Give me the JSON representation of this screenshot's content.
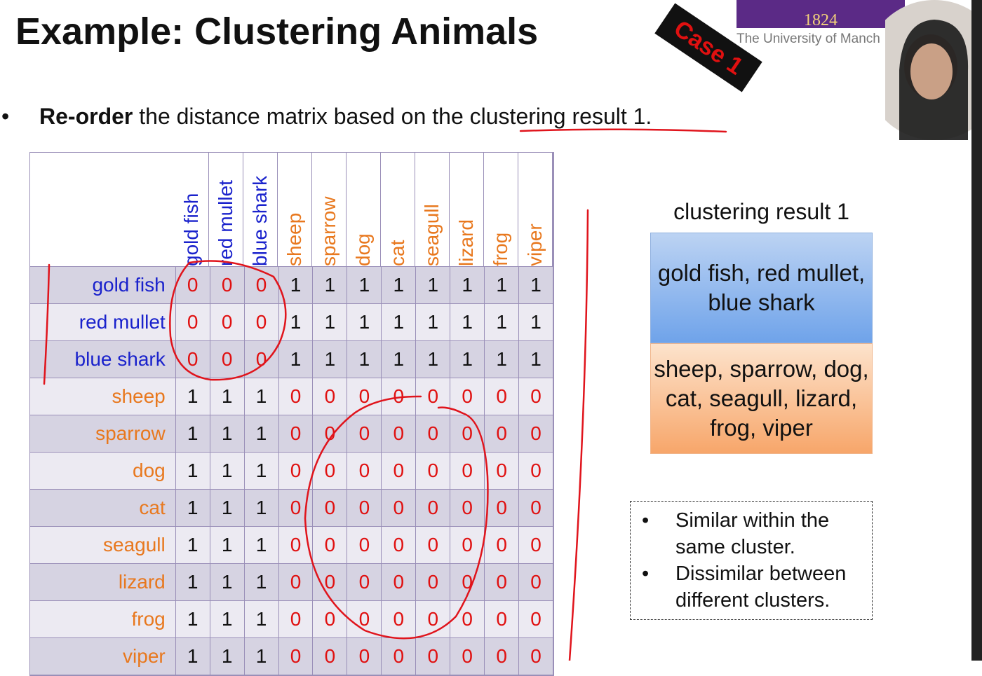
{
  "title": "Example: Clustering Animals",
  "badge": "Case 1",
  "logo": {
    "year": "1824",
    "university": "The University of Manch"
  },
  "bullet": {
    "bold": "Re-order",
    "text": " the distance matrix based on the ",
    "underlined": "clustering result 1."
  },
  "table": {
    "columns": [
      "gold fish",
      "red mullet",
      "blue shark",
      "sheep",
      "sparrow",
      "dog",
      "cat",
      "seagull",
      "lizard",
      "frog",
      "viper"
    ],
    "rows": [
      {
        "label": "gold fish",
        "cells": [
          0,
          0,
          0,
          1,
          1,
          1,
          1,
          1,
          1,
          1,
          1
        ]
      },
      {
        "label": "red mullet",
        "cells": [
          0,
          0,
          0,
          1,
          1,
          1,
          1,
          1,
          1,
          1,
          1
        ]
      },
      {
        "label": "blue shark",
        "cells": [
          0,
          0,
          0,
          1,
          1,
          1,
          1,
          1,
          1,
          1,
          1
        ]
      },
      {
        "label": "sheep",
        "cells": [
          1,
          1,
          1,
          0,
          0,
          0,
          0,
          0,
          0,
          0,
          0
        ]
      },
      {
        "label": "sparrow",
        "cells": [
          1,
          1,
          1,
          0,
          0,
          0,
          0,
          0,
          0,
          0,
          0
        ]
      },
      {
        "label": "dog",
        "cells": [
          1,
          1,
          1,
          0,
          0,
          0,
          0,
          0,
          0,
          0,
          0
        ]
      },
      {
        "label": "cat",
        "cells": [
          1,
          1,
          1,
          0,
          0,
          0,
          0,
          0,
          0,
          0,
          0
        ]
      },
      {
        "label": "seagull",
        "cells": [
          1,
          1,
          1,
          0,
          0,
          0,
          0,
          0,
          0,
          0,
          0
        ]
      },
      {
        "label": "lizard",
        "cells": [
          1,
          1,
          1,
          0,
          0,
          0,
          0,
          0,
          0,
          0,
          0
        ]
      },
      {
        "label": "frog",
        "cells": [
          1,
          1,
          1,
          0,
          0,
          0,
          0,
          0,
          0,
          0,
          0
        ]
      },
      {
        "label": "viper",
        "cells": [
          1,
          1,
          1,
          0,
          0,
          0,
          0,
          0,
          0,
          0,
          0
        ]
      }
    ]
  },
  "result": {
    "title": "clustering result 1",
    "clusters": [
      "gold fish, red mullet, blue shark",
      "sheep, sparrow, dog, cat, seagull, lizard, frog, viper"
    ]
  },
  "notes": [
    "Similar within the same cluster.",
    "Dissimilar between different clusters."
  ]
}
